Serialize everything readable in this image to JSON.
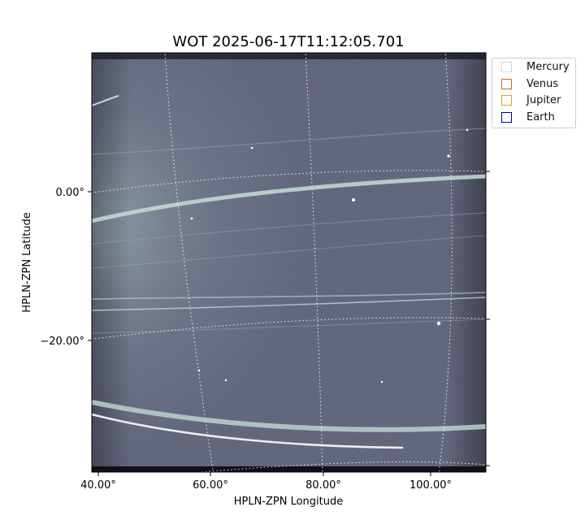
{
  "chart_data": {
    "type": "image",
    "title": "WOT 2025-06-17T11:12:05.701",
    "xlabel": "HPLN-ZPN Longitude",
    "ylabel": "HPLN-ZPN Latitude",
    "x_ticks": [
      {
        "value": 40,
        "label": "40.00°"
      },
      {
        "value": 60,
        "label": "60.00°"
      },
      {
        "value": 80,
        "label": "80.00°"
      },
      {
        "value": 100,
        "label": "100.00°"
      }
    ],
    "y_ticks": [
      {
        "value": 0,
        "label": "0.00°"
      },
      {
        "value": -20,
        "label": "−20.00°"
      }
    ],
    "grid": true,
    "colormap": "bone",
    "legend": {
      "placement": "outside-top-right",
      "entries": [
        {
          "name": "Mercury",
          "color": "#d3d3d3"
        },
        {
          "name": "Venus",
          "color": "#d2691e"
        },
        {
          "name": "Jupiter",
          "color": "#daa520"
        },
        {
          "name": "Earth",
          "color": "#00008b"
        }
      ]
    }
  }
}
